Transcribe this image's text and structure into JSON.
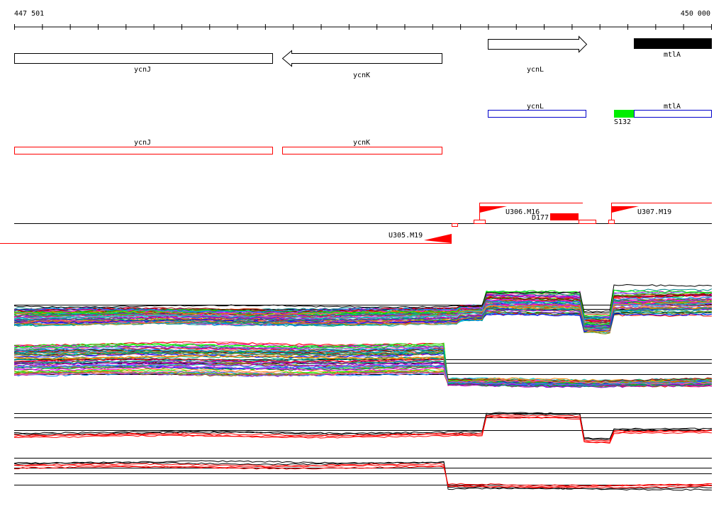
{
  "coords": {
    "start": "447 501",
    "end": "450 000"
  },
  "genes": [
    {
      "label": "ycnJ",
      "strand": "-"
    },
    {
      "label": "ycnK",
      "strand": "-"
    },
    {
      "label": "ycnL",
      "strand": "+"
    },
    {
      "label": "mtlA",
      "strand": "+",
      "filled": true
    }
  ],
  "blue_track": [
    {
      "label": "ycnL"
    },
    {
      "label": "mtlA"
    },
    {
      "label": "S132",
      "color": "#00ee00"
    }
  ],
  "red_track": [
    {
      "label": "ycnJ"
    },
    {
      "label": "ycnK"
    }
  ],
  "features": [
    {
      "label": "U305.M19"
    },
    {
      "label": "U306.M16"
    },
    {
      "label": "D177"
    },
    {
      "label": "U307.M19"
    }
  ],
  "colors": {
    "red": "#ff0000",
    "blue": "#0000cc",
    "green": "#00ee00",
    "black": "#000000"
  }
}
